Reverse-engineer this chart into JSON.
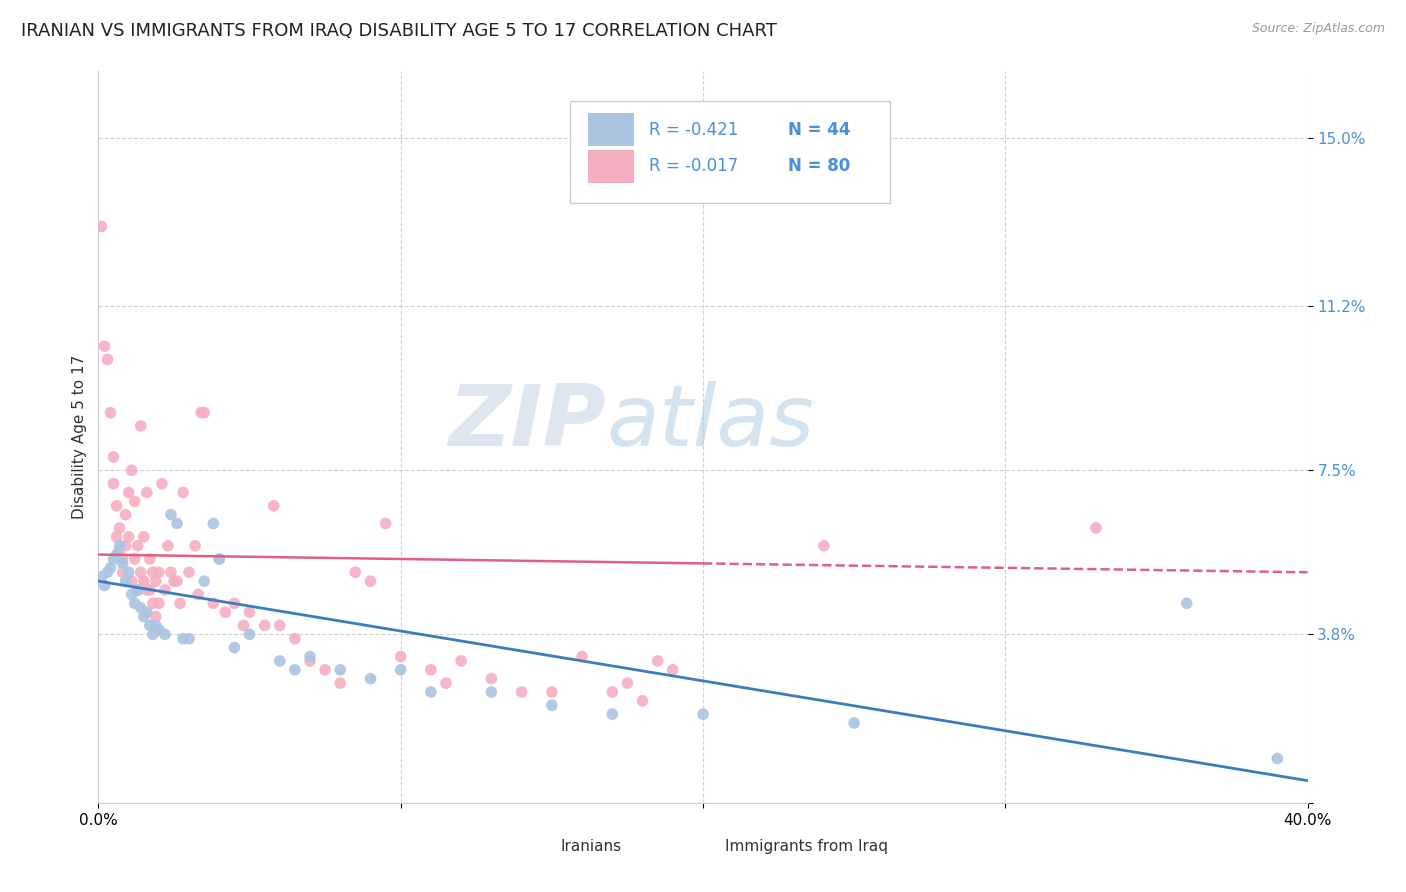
{
  "title": "IRANIAN VS IMMIGRANTS FROM IRAQ DISABILITY AGE 5 TO 17 CORRELATION CHART",
  "source": "Source: ZipAtlas.com",
  "ylabel": "Disability Age 5 to 17",
  "yticks": [
    0.0,
    0.038,
    0.075,
    0.112,
    0.15
  ],
  "ytick_labels": [
    "",
    "3.8%",
    "7.5%",
    "11.2%",
    "15.0%"
  ],
  "xlim": [
    0.0,
    0.4
  ],
  "ylim": [
    0.0,
    0.165
  ],
  "background_color": "#ffffff",
  "watermark_zip": "ZIP",
  "watermark_atlas": "atlas",
  "legend_r_iranians": "R = -0.421",
  "legend_n_iranians": "N = 44",
  "legend_r_iraq": "R = -0.017",
  "legend_n_iraq": "N = 80",
  "iranians_color": "#aac4e2",
  "iraq_color": "#f5aec0",
  "iranians_line_color": "#3a7ec0",
  "iraq_line_color": "#e06080",
  "iranians_scatter": [
    [
      0.001,
      0.051
    ],
    [
      0.002,
      0.049
    ],
    [
      0.003,
      0.052
    ],
    [
      0.004,
      0.053
    ],
    [
      0.005,
      0.055
    ],
    [
      0.006,
      0.056
    ],
    [
      0.007,
      0.058
    ],
    [
      0.008,
      0.054
    ],
    [
      0.009,
      0.05
    ],
    [
      0.01,
      0.052
    ],
    [
      0.011,
      0.047
    ],
    [
      0.012,
      0.045
    ],
    [
      0.013,
      0.048
    ],
    [
      0.014,
      0.044
    ],
    [
      0.015,
      0.042
    ],
    [
      0.016,
      0.043
    ],
    [
      0.017,
      0.04
    ],
    [
      0.018,
      0.038
    ],
    [
      0.019,
      0.04
    ],
    [
      0.02,
      0.039
    ],
    [
      0.022,
      0.038
    ],
    [
      0.024,
      0.065
    ],
    [
      0.026,
      0.063
    ],
    [
      0.028,
      0.037
    ],
    [
      0.03,
      0.037
    ],
    [
      0.035,
      0.05
    ],
    [
      0.038,
      0.063
    ],
    [
      0.04,
      0.055
    ],
    [
      0.045,
      0.035
    ],
    [
      0.05,
      0.038
    ],
    [
      0.06,
      0.032
    ],
    [
      0.065,
      0.03
    ],
    [
      0.07,
      0.033
    ],
    [
      0.08,
      0.03
    ],
    [
      0.09,
      0.028
    ],
    [
      0.1,
      0.03
    ],
    [
      0.11,
      0.025
    ],
    [
      0.13,
      0.025
    ],
    [
      0.15,
      0.022
    ],
    [
      0.17,
      0.02
    ],
    [
      0.2,
      0.02
    ],
    [
      0.25,
      0.018
    ],
    [
      0.36,
      0.045
    ],
    [
      0.39,
      0.01
    ]
  ],
  "iraq_scatter": [
    [
      0.001,
      0.13
    ],
    [
      0.002,
      0.103
    ],
    [
      0.003,
      0.1
    ],
    [
      0.004,
      0.088
    ],
    [
      0.005,
      0.078
    ],
    [
      0.005,
      0.072
    ],
    [
      0.006,
      0.067
    ],
    [
      0.006,
      0.06
    ],
    [
      0.007,
      0.062
    ],
    [
      0.007,
      0.057
    ],
    [
      0.008,
      0.055
    ],
    [
      0.008,
      0.052
    ],
    [
      0.009,
      0.065
    ],
    [
      0.009,
      0.058
    ],
    [
      0.01,
      0.07
    ],
    [
      0.01,
      0.06
    ],
    [
      0.011,
      0.075
    ],
    [
      0.011,
      0.05
    ],
    [
      0.012,
      0.068
    ],
    [
      0.012,
      0.055
    ],
    [
      0.013,
      0.058
    ],
    [
      0.013,
      0.048
    ],
    [
      0.014,
      0.085
    ],
    [
      0.014,
      0.052
    ],
    [
      0.015,
      0.06
    ],
    [
      0.015,
      0.05
    ],
    [
      0.016,
      0.07
    ],
    [
      0.016,
      0.048
    ],
    [
      0.017,
      0.055
    ],
    [
      0.017,
      0.048
    ],
    [
      0.018,
      0.052
    ],
    [
      0.018,
      0.045
    ],
    [
      0.019,
      0.05
    ],
    [
      0.019,
      0.042
    ],
    [
      0.02,
      0.052
    ],
    [
      0.02,
      0.045
    ],
    [
      0.021,
      0.072
    ],
    [
      0.022,
      0.048
    ],
    [
      0.023,
      0.058
    ],
    [
      0.024,
      0.052
    ],
    [
      0.025,
      0.05
    ],
    [
      0.026,
      0.05
    ],
    [
      0.027,
      0.045
    ],
    [
      0.028,
      0.07
    ],
    [
      0.03,
      0.052
    ],
    [
      0.032,
      0.058
    ],
    [
      0.033,
      0.047
    ],
    [
      0.034,
      0.088
    ],
    [
      0.035,
      0.088
    ],
    [
      0.038,
      0.045
    ],
    [
      0.04,
      0.055
    ],
    [
      0.042,
      0.043
    ],
    [
      0.045,
      0.045
    ],
    [
      0.048,
      0.04
    ],
    [
      0.05,
      0.043
    ],
    [
      0.055,
      0.04
    ],
    [
      0.058,
      0.067
    ],
    [
      0.06,
      0.04
    ],
    [
      0.065,
      0.037
    ],
    [
      0.07,
      0.032
    ],
    [
      0.075,
      0.03
    ],
    [
      0.08,
      0.027
    ],
    [
      0.085,
      0.052
    ],
    [
      0.09,
      0.05
    ],
    [
      0.095,
      0.063
    ],
    [
      0.1,
      0.033
    ],
    [
      0.11,
      0.03
    ],
    [
      0.115,
      0.027
    ],
    [
      0.12,
      0.032
    ],
    [
      0.13,
      0.028
    ],
    [
      0.14,
      0.025
    ],
    [
      0.15,
      0.025
    ],
    [
      0.16,
      0.033
    ],
    [
      0.17,
      0.025
    ],
    [
      0.175,
      0.027
    ],
    [
      0.18,
      0.023
    ],
    [
      0.185,
      0.032
    ],
    [
      0.19,
      0.03
    ],
    [
      0.24,
      0.058
    ],
    [
      0.33,
      0.062
    ]
  ],
  "grid_color": "#cccccc",
  "title_fontsize": 13,
  "axis_label_fontsize": 11,
  "tick_fontsize": 11,
  "legend_fontsize": 12
}
